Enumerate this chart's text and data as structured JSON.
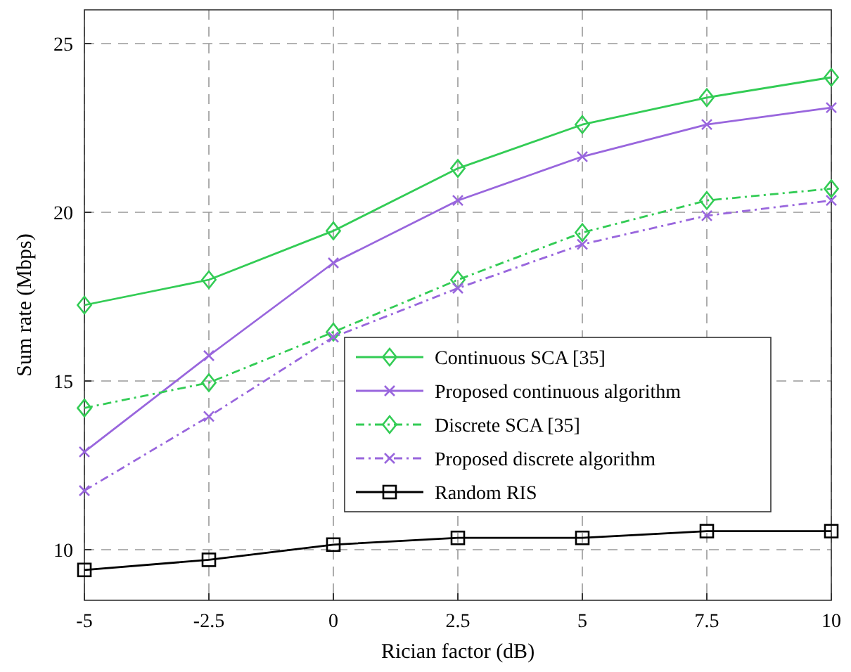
{
  "chart_data": {
    "type": "line",
    "xlabel": "Rician factor (dB)",
    "ylabel": "Sum rate (Mbps)",
    "x": [
      -5,
      -2.5,
      0,
      2.5,
      5,
      7.5,
      10
    ],
    "xlim": [
      -5,
      10
    ],
    "xticks": [
      -5,
      -2.5,
      0,
      2.5,
      5,
      7.5,
      10
    ],
    "ylim": [
      8.5,
      26
    ],
    "yticks": [
      10,
      15,
      20,
      25
    ],
    "grid": true,
    "legend": "bottom right",
    "series": [
      {
        "name": "Continuous SCA [35]",
        "color": "#33cc55",
        "marker": "diamond",
        "line_style": "solid",
        "values": [
          17.25,
          18.0,
          19.45,
          21.3,
          22.6,
          23.4,
          24.0
        ]
      },
      {
        "name": "Proposed continuous algorithm",
        "color": "#9966dd",
        "marker": "cross",
        "line_style": "solid",
        "values": [
          12.9,
          15.75,
          18.5,
          20.35,
          21.65,
          22.6,
          23.1
        ]
      },
      {
        "name": "Discrete SCA [35]",
        "color": "#33cc55",
        "marker": "diamond",
        "line_style": "dashdot",
        "values": [
          14.2,
          14.95,
          16.45,
          18.0,
          19.4,
          20.35,
          20.7
        ]
      },
      {
        "name": "Proposed discrete algorithm",
        "color": "#9966dd",
        "marker": "cross",
        "line_style": "dashdot",
        "values": [
          11.75,
          13.95,
          16.3,
          17.75,
          19.05,
          19.9,
          20.35
        ]
      },
      {
        "name": "Random RIS",
        "color": "#000000",
        "marker": "square",
        "line_style": "solid",
        "values": [
          9.4,
          9.7,
          10.15,
          10.35,
          10.35,
          10.55,
          10.55
        ]
      }
    ]
  }
}
